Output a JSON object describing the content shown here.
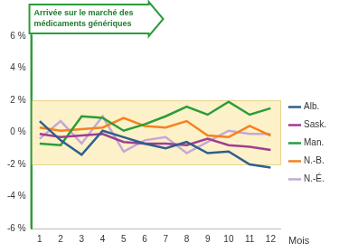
{
  "chart_data": {
    "type": "line",
    "annotation": "Arrivée sur le marché des médicaments génériques",
    "x_label": "Mois",
    "x": [
      1,
      2,
      3,
      4,
      5,
      6,
      7,
      8,
      9,
      10,
      11,
      12
    ],
    "xlim": [
      0.6,
      12.5
    ],
    "xticks": [
      1,
      2,
      3,
      4,
      5,
      6,
      7,
      8,
      9,
      10,
      11,
      12
    ],
    "ylim": [
      -6,
      6
    ],
    "yticks": [
      {
        "value": -6,
        "label": "-6 %"
      },
      {
        "value": -4,
        "label": "-4 %"
      },
      {
        "value": -2,
        "label": "-2 %"
      },
      {
        "value": 0,
        "label": "0 %"
      },
      {
        "value": 2,
        "label": "2 %"
      },
      {
        "value": 4,
        "label": "4 %"
      },
      {
        "value": 6,
        "label": "6 %"
      }
    ],
    "band": [
      -2,
      2
    ],
    "grid": false,
    "legend": "right",
    "series": [
      {
        "name": "Alb.",
        "color": "#2e5f8e",
        "values": [
          0.7,
          -0.5,
          -1.4,
          0.1,
          -0.3,
          -0.7,
          -1.0,
          -0.6,
          -1.3,
          -1.2,
          -2.0,
          -2.2
        ]
      },
      {
        "name": "Sask.",
        "color": "#a03d92",
        "values": [
          -0.1,
          -0.3,
          -0.2,
          -0.1,
          -0.6,
          -0.7,
          -0.7,
          -0.8,
          -0.4,
          -0.8,
          -0.9,
          -1.1
        ]
      },
      {
        "name": "Man.",
        "color": "#2a9d3a",
        "values": [
          -0.7,
          -0.8,
          1.0,
          0.9,
          0.1,
          0.5,
          1.0,
          1.6,
          1.1,
          1.9,
          1.1,
          1.5
        ]
      },
      {
        "name": "N.-B.",
        "color": "#f58220",
        "values": [
          0.3,
          0.1,
          0.2,
          0.3,
          0.9,
          0.4,
          0.3,
          0.7,
          -0.2,
          -0.3,
          0.4,
          -0.2
        ]
      },
      {
        "name": "N.-É.",
        "color": "#c6a7d8",
        "values": [
          -0.4,
          0.7,
          -0.7,
          1.0,
          -1.2,
          -0.5,
          -0.3,
          -1.3,
          -0.6,
          0.1,
          -0.1,
          -0.1
        ]
      }
    ]
  }
}
